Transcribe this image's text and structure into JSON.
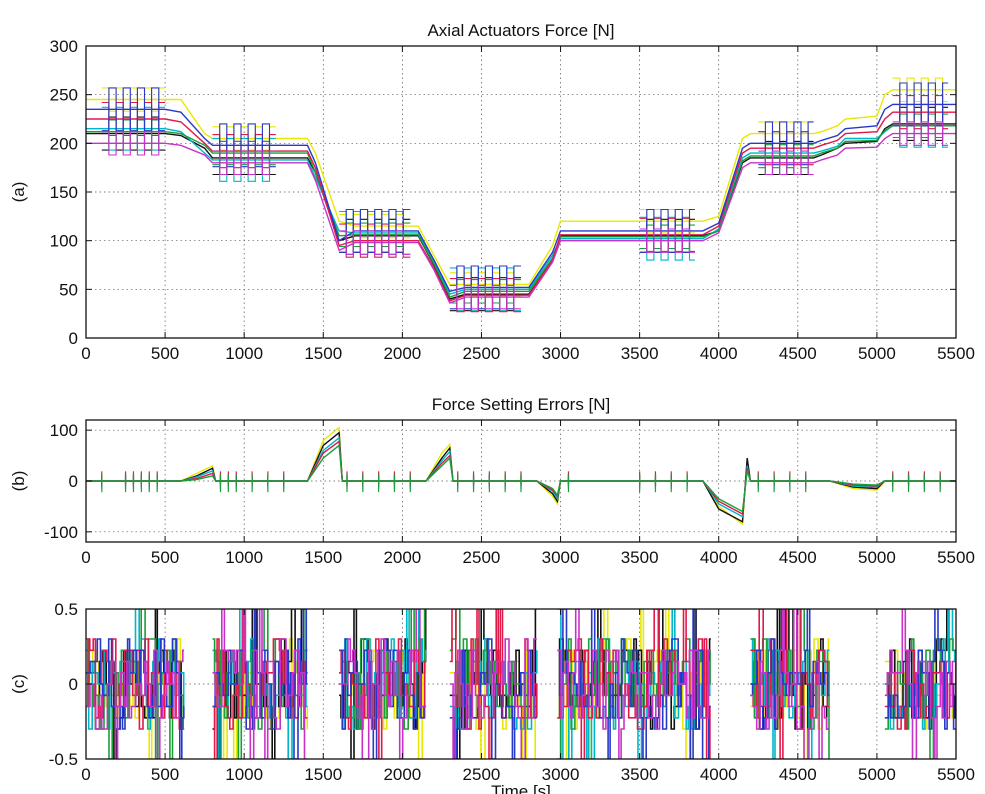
{
  "chart_data": [
    {
      "type": "line",
      "panel": "(a)",
      "title": "Axial Actuators Force [N]",
      "xlabel": "",
      "ylabel": "(a)",
      "xlim": [
        0,
        5500
      ],
      "ylim": [
        0,
        300
      ],
      "xticks": [
        0,
        500,
        1000,
        1500,
        2000,
        2500,
        3000,
        3500,
        4000,
        4500,
        5000,
        5500
      ],
      "yticks": [
        0,
        50,
        100,
        150,
        200,
        250,
        300
      ],
      "grid": true,
      "series": [
        {
          "color": "#e8e800",
          "x": [
            0,
            100,
            500,
            600,
            750,
            800,
            1400,
            1450,
            1600,
            1700,
            2100,
            2200,
            2300,
            2400,
            2700,
            2800,
            2950,
            3000,
            3900,
            4000,
            4150,
            4200,
            4600,
            4650,
            4750,
            4800,
            5000,
            5050,
            5100,
            5500
          ],
          "y": [
            245,
            245,
            245,
            245,
            210,
            205,
            205,
            190,
            120,
            115,
            115,
            85,
            55,
            55,
            55,
            55,
            95,
            120,
            120,
            125,
            205,
            210,
            210,
            212,
            218,
            225,
            228,
            250,
            255,
            255
          ]
        },
        {
          "color": "#111111",
          "x": [
            0,
            100,
            500,
            600,
            750,
            800,
            1400,
            1450,
            1600,
            1700,
            2100,
            2200,
            2300,
            2400,
            2700,
            2800,
            2950,
            3000,
            3900,
            4000,
            4150,
            4200,
            4600,
            4650,
            4750,
            4800,
            5000,
            5050,
            5100,
            5500
          ],
          "y": [
            210,
            210,
            210,
            208,
            195,
            185,
            185,
            170,
            100,
            105,
            105,
            75,
            40,
            45,
            45,
            45,
            80,
            105,
            105,
            110,
            180,
            185,
            185,
            188,
            195,
            200,
            202,
            215,
            220,
            220
          ]
        },
        {
          "color": "#00b5c8",
          "x": [
            0,
            100,
            500,
            600,
            750,
            800,
            1400,
            1450,
            1600,
            1700,
            2100,
            2200,
            2300,
            2400,
            2700,
            2800,
            2950,
            3000,
            3900,
            4000,
            4150,
            4200,
            4600,
            4650,
            4750,
            4800,
            5000,
            5050,
            5100,
            5500
          ],
          "y": [
            215,
            215,
            215,
            212,
            190,
            183,
            183,
            165,
            110,
            108,
            108,
            78,
            45,
            50,
            50,
            50,
            85,
            102,
            102,
            112,
            185,
            190,
            190,
            192,
            197,
            205,
            205,
            212,
            218,
            218
          ]
        },
        {
          "color": "#1a9e3a",
          "x": [
            0,
            100,
            500,
            600,
            750,
            800,
            1400,
            1450,
            1600,
            1700,
            2100,
            2200,
            2300,
            2400,
            2700,
            2800,
            2950,
            3000,
            3900,
            4000,
            4150,
            4200,
            4600,
            4650,
            4750,
            4800,
            5000,
            5050,
            5100,
            5500
          ],
          "y": [
            212,
            212,
            212,
            210,
            198,
            190,
            190,
            170,
            105,
            106,
            106,
            76,
            42,
            48,
            48,
            48,
            82,
            104,
            104,
            110,
            182,
            187,
            187,
            190,
            195,
            202,
            203,
            213,
            218,
            218
          ]
        },
        {
          "color": "#e0194a",
          "x": [
            0,
            100,
            500,
            600,
            750,
            800,
            1400,
            1450,
            1600,
            1700,
            2100,
            2200,
            2300,
            2400,
            2700,
            2800,
            2950,
            3000,
            3900,
            4000,
            4150,
            4200,
            4600,
            4650,
            4750,
            4800,
            5000,
            5050,
            5100,
            5500
          ],
          "y": [
            225,
            225,
            225,
            222,
            200,
            192,
            192,
            175,
            95,
            100,
            100,
            72,
            38,
            44,
            44,
            44,
            80,
            106,
            106,
            115,
            190,
            195,
            195,
            198,
            203,
            210,
            212,
            225,
            232,
            232
          ]
        },
        {
          "color": "#2838c8",
          "x": [
            0,
            100,
            500,
            600,
            750,
            800,
            1400,
            1450,
            1600,
            1700,
            2100,
            2200,
            2300,
            2400,
            2700,
            2800,
            2950,
            3000,
            3900,
            4000,
            4150,
            4200,
            4600,
            4650,
            4750,
            4800,
            5000,
            5050,
            5100,
            5500
          ],
          "y": [
            235,
            235,
            235,
            232,
            205,
            198,
            198,
            180,
            100,
            110,
            110,
            80,
            48,
            52,
            52,
            52,
            88,
            110,
            110,
            118,
            195,
            200,
            200,
            203,
            208,
            215,
            218,
            235,
            240,
            240
          ]
        },
        {
          "color": "#c832c8",
          "x": [
            0,
            100,
            500,
            600,
            750,
            800,
            1400,
            1450,
            1600,
            1700,
            2100,
            2200,
            2300,
            2400,
            2700,
            2800,
            2950,
            3000,
            3900,
            4000,
            4150,
            4200,
            4600,
            4650,
            4750,
            4800,
            5000,
            5050,
            5100,
            5500
          ],
          "y": [
            200,
            200,
            200,
            198,
            188,
            180,
            180,
            162,
            90,
            98,
            98,
            70,
            36,
            42,
            42,
            42,
            78,
            100,
            100,
            108,
            175,
            180,
            180,
            183,
            188,
            195,
            196,
            205,
            210,
            210
          ]
        }
      ]
    },
    {
      "type": "line",
      "panel": "(b)",
      "title": "Force Setting Errors [N]",
      "xlabel": "",
      "ylabel": "(b)",
      "xlim": [
        0,
        5500
      ],
      "ylim": [
        -120,
        120
      ],
      "xticks": [
        0,
        500,
        1000,
        1500,
        2000,
        2500,
        3000,
        3500,
        4000,
        4500,
        5000,
        5500
      ],
      "yticks": [
        -100,
        0,
        100
      ],
      "grid": true,
      "series": [
        {
          "color": "#e8e800",
          "x": [
            0,
            600,
            700,
            800,
            820,
            1400,
            1500,
            1600,
            1620,
            2150,
            2250,
            2300,
            2320,
            2850,
            2950,
            2980,
            3000,
            3900,
            4000,
            4150,
            4180,
            4200,
            4700,
            4850,
            5000,
            5050,
            5500
          ],
          "y": [
            0,
            0,
            15,
            30,
            0,
            0,
            80,
            105,
            0,
            0,
            55,
            72,
            0,
            0,
            -30,
            -45,
            0,
            0,
            -50,
            -85,
            40,
            0,
            0,
            -15,
            -18,
            0,
            0
          ]
        },
        {
          "color": "#111111",
          "x": [
            0,
            600,
            700,
            800,
            820,
            1400,
            1500,
            1600,
            1620,
            2150,
            2250,
            2300,
            2320,
            2850,
            2950,
            2980,
            3000,
            3900,
            4000,
            4150,
            4180,
            4200,
            4700,
            4850,
            5000,
            5050,
            5500
          ],
          "y": [
            0,
            0,
            10,
            25,
            0,
            0,
            70,
            95,
            0,
            0,
            45,
            65,
            0,
            0,
            -25,
            -40,
            0,
            0,
            -55,
            -80,
            45,
            0,
            0,
            -12,
            -15,
            0,
            0
          ]
        },
        {
          "color": "#00b5c8",
          "x": [
            0,
            600,
            700,
            800,
            820,
            1400,
            1500,
            1600,
            1620,
            2150,
            2250,
            2300,
            2320,
            2850,
            2950,
            2980,
            3000,
            3900,
            4000,
            4150,
            4180,
            4200,
            4700,
            4850,
            5000,
            5050,
            5500
          ],
          "y": [
            0,
            0,
            8,
            20,
            0,
            0,
            60,
            85,
            0,
            0,
            40,
            58,
            0,
            0,
            -20,
            -35,
            0,
            0,
            -45,
            -70,
            30,
            0,
            0,
            -10,
            -12,
            0,
            0
          ]
        },
        {
          "color": "#e0194a",
          "x": [
            0,
            600,
            700,
            800,
            820,
            1400,
            1500,
            1600,
            1620,
            2150,
            2250,
            2300,
            2320,
            2850,
            2950,
            2980,
            3000,
            3900,
            4000,
            4150,
            4180,
            4200,
            4700,
            4850,
            5000,
            5050,
            5500
          ],
          "y": [
            0,
            0,
            5,
            15,
            0,
            0,
            55,
            78,
            0,
            0,
            35,
            50,
            0,
            0,
            -18,
            -30,
            0,
            0,
            -40,
            -65,
            25,
            0,
            0,
            -8,
            -10,
            0,
            0
          ]
        },
        {
          "color": "#1a9e3a",
          "x": [
            0,
            600,
            700,
            800,
            820,
            1400,
            1500,
            1600,
            1620,
            2150,
            2250,
            2300,
            2320,
            2850,
            2950,
            2980,
            3000,
            3900,
            4000,
            4150,
            4180,
            4200,
            4700,
            4850,
            5000,
            5050,
            5500
          ],
          "y": [
            0,
            0,
            3,
            10,
            0,
            0,
            45,
            70,
            0,
            0,
            30,
            45,
            0,
            0,
            -15,
            -28,
            0,
            0,
            -35,
            -60,
            20,
            0,
            0,
            -6,
            -8,
            0,
            0
          ]
        }
      ]
    },
    {
      "type": "line",
      "panel": "(c)",
      "title": "",
      "xlabel": "Time [s]",
      "ylabel": "(c)",
      "xlim": [
        0,
        5500
      ],
      "ylim": [
        -0.5,
        0.5
      ],
      "xticks": [
        0,
        500,
        1000,
        1500,
        2000,
        2500,
        3000,
        3500,
        4000,
        4500,
        5000,
        5500
      ],
      "yticks": [
        -0.5,
        0,
        0.5
      ],
      "grid": true,
      "active_intervals": [
        [
          0,
          620
        ],
        [
          800,
          1400
        ],
        [
          1600,
          2150
        ],
        [
          2300,
          2850
        ],
        [
          2980,
          3950
        ],
        [
          4200,
          4700
        ],
        [
          5050,
          5500
        ]
      ],
      "amplitude": 0.2,
      "series_colors": [
        "#e8e800",
        "#111111",
        "#00b5c8",
        "#1a9e3a",
        "#e0194a",
        "#2838c8",
        "#c832c8"
      ]
    }
  ]
}
